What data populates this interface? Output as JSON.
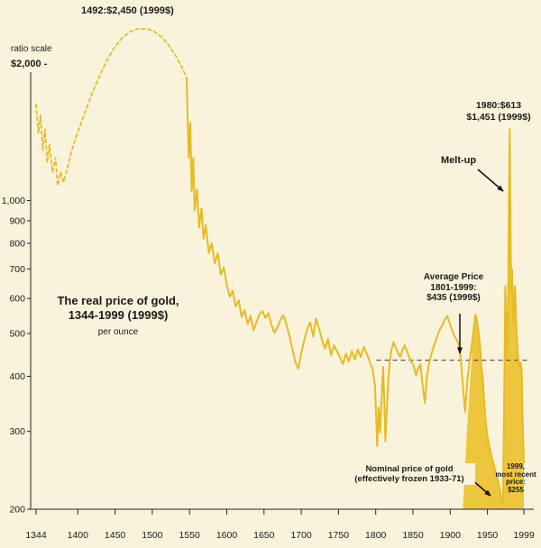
{
  "page": {
    "background_color": "#FAF3DC"
  },
  "chart_data": {
    "type": "line",
    "title_lines": [
      "The real price of gold,",
      "1344-1999 (1999$)"
    ],
    "subtitle": "per ounce",
    "y_axis": {
      "scale": "log",
      "scale_label": "ratio scale",
      "top_label": "$2,000 -",
      "ticks": [
        {
          "value": 1000,
          "label": "1,000"
        },
        {
          "value": 900,
          "label": "900"
        },
        {
          "value": 800,
          "label": "800"
        },
        {
          "value": 700,
          "label": "700"
        },
        {
          "value": 600,
          "label": "600"
        },
        {
          "value": 500,
          "label": "500"
        },
        {
          "value": 400,
          "label": "400"
        },
        {
          "value": 300,
          "label": "300"
        },
        {
          "value": 200,
          "label": "200"
        }
      ],
      "range": [
        200,
        2600
      ]
    },
    "x_axis": {
      "ticks": [
        1344,
        1400,
        1450,
        1500,
        1550,
        1600,
        1650,
        1700,
        1750,
        1800,
        1850,
        1900,
        1950,
        1999
      ],
      "range": [
        1344,
        2004
      ]
    },
    "reference_line": {
      "value": 435,
      "style": "dashed",
      "color": "#555555",
      "x_start_year": 1801,
      "x_end_year": 2004
    },
    "series": [
      {
        "name": "estimated-real-price-dashed",
        "line_style": "dashed",
        "color": "#E7BA25",
        "points": [
          [
            1344,
            1650
          ],
          [
            1347,
            1420
          ],
          [
            1350,
            1560
          ],
          [
            1353,
            1300
          ],
          [
            1356,
            1450
          ],
          [
            1359,
            1220
          ],
          [
            1362,
            1340
          ],
          [
            1366,
            1160
          ],
          [
            1370,
            1250
          ],
          [
            1373,
            1080
          ],
          [
            1377,
            1160
          ],
          [
            1381,
            1100
          ],
          [
            1386,
            1180
          ],
          [
            1392,
            1300
          ],
          [
            1400,
            1430
          ],
          [
            1410,
            1590
          ],
          [
            1420,
            1760
          ],
          [
            1430,
            1930
          ],
          [
            1440,
            2090
          ],
          [
            1450,
            2230
          ],
          [
            1460,
            2340
          ],
          [
            1470,
            2410
          ],
          [
            1480,
            2445
          ],
          [
            1492,
            2450
          ],
          [
            1502,
            2420
          ],
          [
            1512,
            2350
          ],
          [
            1522,
            2250
          ],
          [
            1532,
            2120
          ],
          [
            1540,
            2000
          ],
          [
            1546,
            1900
          ]
        ]
      },
      {
        "name": "real-price-line",
        "line_style": "solid",
        "color": "#E7BA25",
        "points": [
          [
            1546,
            1900
          ],
          [
            1549,
            1250
          ],
          [
            1551,
            1500
          ],
          [
            1553,
            1050
          ],
          [
            1555,
            1250
          ],
          [
            1557,
            950
          ],
          [
            1560,
            1060
          ],
          [
            1563,
            870
          ],
          [
            1566,
            960
          ],
          [
            1569,
            820
          ],
          [
            1572,
            880
          ],
          [
            1576,
            760
          ],
          [
            1580,
            800
          ],
          [
            1584,
            720
          ],
          [
            1588,
            760
          ],
          [
            1592,
            680
          ],
          [
            1596,
            705
          ],
          [
            1600,
            645
          ],
          [
            1604,
            605
          ],
          [
            1608,
            625
          ],
          [
            1612,
            575
          ],
          [
            1616,
            595
          ],
          [
            1620,
            545
          ],
          [
            1624,
            565
          ],
          [
            1628,
            525
          ],
          [
            1632,
            548
          ],
          [
            1636,
            508
          ],
          [
            1640,
            532
          ],
          [
            1644,
            552
          ],
          [
            1648,
            562
          ],
          [
            1652,
            542
          ],
          [
            1656,
            556
          ],
          [
            1660,
            522
          ],
          [
            1664,
            502
          ],
          [
            1668,
            516
          ],
          [
            1672,
            536
          ],
          [
            1676,
            550
          ],
          [
            1680,
            526
          ],
          [
            1684,
            496
          ],
          [
            1688,
            462
          ],
          [
            1692,
            432
          ],
          [
            1696,
            416
          ],
          [
            1700,
            452
          ],
          [
            1704,
            482
          ],
          [
            1708,
            512
          ],
          [
            1712,
            530
          ],
          [
            1716,
            492
          ],
          [
            1720,
            540
          ],
          [
            1724,
            512
          ],
          [
            1728,
            482
          ],
          [
            1732,
            462
          ],
          [
            1736,
            486
          ],
          [
            1740,
            446
          ],
          [
            1744,
            470
          ],
          [
            1748,
            456
          ],
          [
            1752,
            442
          ],
          [
            1756,
            426
          ],
          [
            1760,
            450
          ],
          [
            1764,
            432
          ],
          [
            1768,
            456
          ],
          [
            1772,
            436
          ],
          [
            1776,
            460
          ],
          [
            1780,
            442
          ],
          [
            1784,
            466
          ],
          [
            1788,
            450
          ],
          [
            1792,
            432
          ],
          [
            1796,
            412
          ],
          [
            1799,
            382
          ],
          [
            1801,
            312
          ],
          [
            1802,
            278
          ],
          [
            1804,
            340
          ],
          [
            1806,
            298
          ],
          [
            1808,
            360
          ],
          [
            1810,
            420
          ],
          [
            1812,
            330
          ],
          [
            1813,
            285
          ],
          [
            1815,
            335
          ],
          [
            1817,
            392
          ],
          [
            1819,
            432
          ],
          [
            1821,
            458
          ],
          [
            1824,
            478
          ],
          [
            1827,
            464
          ],
          [
            1830,
            452
          ],
          [
            1833,
            442
          ],
          [
            1836,
            460
          ],
          [
            1839,
            470
          ],
          [
            1842,
            456
          ],
          [
            1845,
            442
          ],
          [
            1848,
            432
          ],
          [
            1851,
            422
          ],
          [
            1854,
            402
          ],
          [
            1857,
            416
          ],
          [
            1860,
            426
          ],
          [
            1863,
            382
          ],
          [
            1866,
            348
          ],
          [
            1869,
            402
          ],
          [
            1872,
            430
          ],
          [
            1875,
            450
          ],
          [
            1878,
            468
          ],
          [
            1881,
            484
          ],
          [
            1884,
            500
          ],
          [
            1887,
            514
          ],
          [
            1890,
            524
          ],
          [
            1893,
            538
          ],
          [
            1896,
            548
          ],
          [
            1899,
            530
          ],
          [
            1902,
            512
          ],
          [
            1905,
            496
          ],
          [
            1908,
            486
          ],
          [
            1911,
            476
          ],
          [
            1914,
            442
          ],
          [
            1917,
            382
          ],
          [
            1920,
            332
          ],
          [
            1923,
            392
          ],
          [
            1926,
            432
          ],
          [
            1929,
            470
          ],
          [
            1932,
            520
          ],
          [
            1934,
            552
          ],
          [
            1936,
            532
          ],
          [
            1938,
            506
          ],
          [
            1940,
            472
          ],
          [
            1942,
            422
          ],
          [
            1944,
            392
          ],
          [
            1946,
            342
          ],
          [
            1948,
            312
          ],
          [
            1950,
            292
          ],
          [
            1953,
            276
          ],
          [
            1956,
            262
          ],
          [
            1959,
            250
          ],
          [
            1962,
            240
          ],
          [
            1965,
            229
          ],
          [
            1968,
            216
          ],
          [
            1970,
            206
          ],
          [
            1971,
            214
          ],
          [
            1972,
            290
          ],
          [
            1973,
            430
          ],
          [
            1974,
            640
          ],
          [
            1975,
            560
          ],
          [
            1976,
            440
          ],
          [
            1977,
            490
          ],
          [
            1978,
            620
          ],
          [
            1979,
            1050
          ],
          [
            1980,
            1451
          ],
          [
            1981,
            850
          ],
          [
            1982,
            620
          ],
          [
            1983,
            700
          ],
          [
            1984,
            610
          ],
          [
            1985,
            530
          ],
          [
            1986,
            580
          ],
          [
            1987,
            640
          ],
          [
            1988,
            580
          ],
          [
            1989,
            510
          ],
          [
            1990,
            480
          ],
          [
            1991,
            450
          ],
          [
            1992,
            430
          ],
          [
            1993,
            420
          ],
          [
            1994,
            430
          ],
          [
            1995,
            425
          ],
          [
            1996,
            410
          ],
          [
            1997,
            330
          ],
          [
            1998,
            290
          ],
          [
            1999,
            255
          ]
        ]
      },
      {
        "name": "nominal-price-area",
        "type": "area",
        "color": "#EEC63E",
        "points": [
          [
            1917,
            200
          ],
          [
            1919,
            230
          ],
          [
            1922,
            290
          ],
          [
            1925,
            350
          ],
          [
            1928,
            420
          ],
          [
            1931,
            500
          ],
          [
            1934,
            552
          ],
          [
            1936,
            532
          ],
          [
            1938,
            506
          ],
          [
            1940,
            472
          ],
          [
            1942,
            422
          ],
          [
            1944,
            392
          ],
          [
            1946,
            342
          ],
          [
            1948,
            312
          ],
          [
            1950,
            292
          ],
          [
            1953,
            276
          ],
          [
            1956,
            262
          ],
          [
            1959,
            250
          ],
          [
            1962,
            240
          ],
          [
            1965,
            229
          ],
          [
            1968,
            216
          ],
          [
            1970,
            206
          ],
          [
            1971,
            214
          ],
          [
            1972,
            290
          ],
          [
            1973,
            430
          ],
          [
            1974,
            640
          ],
          [
            1975,
            560
          ],
          [
            1976,
            440
          ],
          [
            1977,
            490
          ],
          [
            1978,
            620
          ],
          [
            1979,
            1050
          ],
          [
            1980,
            1451
          ],
          [
            1981,
            850
          ],
          [
            1982,
            620
          ],
          [
            1983,
            700
          ],
          [
            1984,
            610
          ],
          [
            1985,
            530
          ],
          [
            1986,
            580
          ],
          [
            1987,
            640
          ],
          [
            1988,
            580
          ],
          [
            1989,
            510
          ],
          [
            1990,
            480
          ],
          [
            1991,
            450
          ],
          [
            1992,
            430
          ],
          [
            1993,
            420
          ],
          [
            1994,
            430
          ],
          [
            1995,
            425
          ],
          [
            1996,
            410
          ],
          [
            1997,
            330
          ],
          [
            1998,
            290
          ],
          [
            1999,
            255
          ]
        ]
      }
    ],
    "annotations": {
      "peak_1492": {
        "text": "1492:$2,450 (1999$)"
      },
      "label_1980": {
        "lines": [
          "1980:$613",
          "$1,451 (1999$)"
        ]
      },
      "melt_up": {
        "text": "Melt-up"
      },
      "average": {
        "lines": [
          "Average Price",
          "1801-1999:",
          "$435 (1999$)"
        ]
      },
      "nominal": {
        "lines": [
          "Nominal price of gold",
          "(effectively frozen 1933-71)"
        ]
      },
      "recent": {
        "lines": [
          "1999,",
          "most recent",
          "price:",
          "$255"
        ]
      }
    }
  }
}
